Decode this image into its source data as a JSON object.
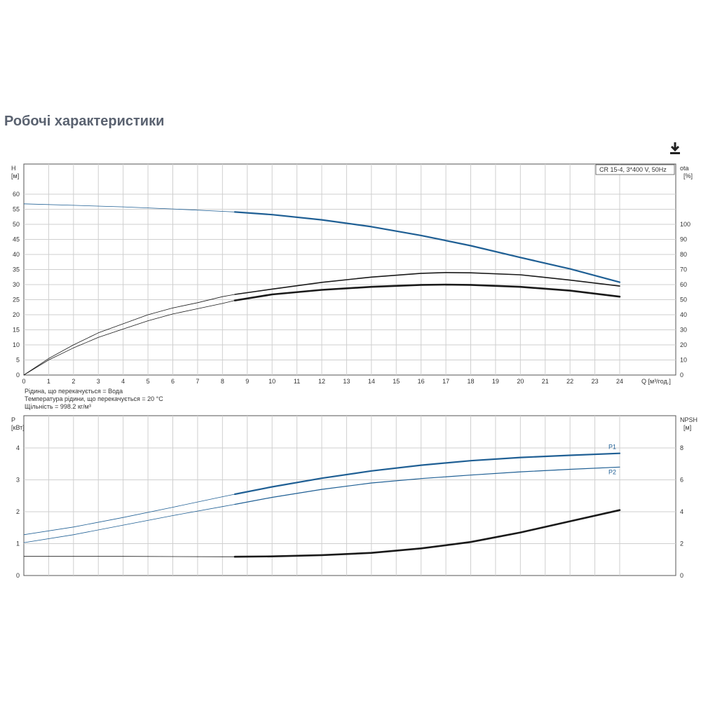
{
  "title": "Робочі характеристики",
  "download_icon": "download-icon",
  "legend_box": "CR 15-4, 3*400 V, 50Hz",
  "fluid_notes": [
    "Рідина, що перекачується = Вода",
    "Температура рідини, що перекачується = 20 °C",
    "Щільність = 998.2 кг/м³"
  ],
  "colors": {
    "blue": "#1f5f94",
    "dark": "#1a1a1a",
    "grid": "#cfcfcf",
    "axis": "#555555"
  },
  "chart_data": [
    {
      "type": "line",
      "name": "top",
      "x_label": "Q [м³/год.]",
      "y_left_label": [
        "H",
        "[м]"
      ],
      "y_right_label": [
        "ota",
        "[%]"
      ],
      "xlim": [
        0,
        26
      ],
      "ylim": [
        0,
        70
      ],
      "ylim_right": [
        0,
        140
      ],
      "x_ticks": [
        0,
        1,
        2,
        3,
        4,
        5,
        6,
        7,
        8,
        9,
        10,
        11,
        12,
        13,
        14,
        15,
        16,
        17,
        18,
        19,
        20,
        21,
        22,
        23,
        24
      ],
      "y_ticks": [
        0,
        5,
        10,
        15,
        20,
        25,
        30,
        35,
        40,
        45,
        50,
        55,
        60
      ],
      "y_right_ticks": [
        0,
        10,
        20,
        30,
        40,
        50,
        60,
        70,
        80,
        90,
        100
      ],
      "series": [
        {
          "axis": "left",
          "color": "#1f5f94",
          "width_thin": 0.8,
          "width_thick": 2.2,
          "split": 8.5,
          "x": [
            0,
            2,
            4,
            6,
            8,
            8.5,
            10,
            12,
            14,
            16,
            18,
            20,
            22,
            24
          ],
          "y": [
            56.8,
            56.3,
            55.8,
            55.1,
            54.3,
            54.1,
            53.2,
            51.5,
            49.2,
            46.3,
            42.9,
            39.0,
            35.2,
            30.8
          ]
        },
        {
          "axis": "right",
          "color": "#1a1a1a",
          "width_thin": 0.8,
          "width_thick": 1.6,
          "split": 8.5,
          "x": [
            0,
            1,
            2,
            3,
            4,
            5,
            6,
            7,
            8,
            8.5,
            10,
            12,
            14,
            16,
            17,
            18,
            20,
            22,
            24
          ],
          "y": [
            0,
            11,
            20,
            28,
            34,
            40,
            44.5,
            48,
            52,
            53.5,
            57,
            61.5,
            65,
            67.5,
            68,
            67.8,
            66.5,
            63,
            59
          ]
        },
        {
          "axis": "right",
          "color": "#1a1a1a",
          "width_thin": 0.8,
          "width_thick": 2.6,
          "split": 8.5,
          "x": [
            0,
            1,
            2,
            3,
            4,
            5,
            6,
            7,
            8,
            8.5,
            10,
            12,
            14,
            16,
            17,
            18,
            20,
            22,
            24
          ],
          "y": [
            0,
            10,
            18,
            25,
            30.5,
            36,
            40.5,
            44,
            47.5,
            49.5,
            53.5,
            56.5,
            58.5,
            59.8,
            60,
            59.8,
            58.5,
            56,
            52
          ]
        }
      ]
    },
    {
      "type": "line",
      "name": "bottom",
      "y_left_label": [
        "P",
        "[кВт]"
      ],
      "y_right_label": [
        "NPSH",
        "[м]"
      ],
      "xlim": [
        0,
        26
      ],
      "ylim": [
        0,
        5
      ],
      "ylim_right": [
        0,
        10
      ],
      "x_ticks": [
        0,
        1,
        2,
        3,
        4,
        5,
        6,
        7,
        8,
        9,
        10,
        11,
        12,
        13,
        14,
        15,
        16,
        17,
        18,
        19,
        20,
        21,
        22,
        23,
        24
      ],
      "y_ticks": [
        0,
        1,
        2,
        3,
        4
      ],
      "y_right_ticks": [
        0,
        2,
        4,
        6,
        8
      ],
      "series": [
        {
          "name": "P1",
          "axis": "left",
          "color": "#1f5f94",
          "width_thin": 0.8,
          "width_thick": 2.2,
          "split": 8.5,
          "x": [
            0,
            2,
            4,
            6,
            8,
            8.5,
            10,
            12,
            14,
            16,
            18,
            20,
            22,
            24
          ],
          "y": [
            1.28,
            1.52,
            1.82,
            2.14,
            2.47,
            2.55,
            2.78,
            3.05,
            3.28,
            3.46,
            3.6,
            3.7,
            3.77,
            3.83
          ]
        },
        {
          "name": "P2",
          "axis": "left",
          "color": "#1f5f94",
          "width_thin": 0.8,
          "width_thick": 1.2,
          "split": 8.5,
          "x": [
            0,
            2,
            4,
            6,
            8,
            8.5,
            10,
            12,
            14,
            16,
            18,
            20,
            22,
            24
          ],
          "y": [
            1.03,
            1.28,
            1.58,
            1.88,
            2.16,
            2.23,
            2.45,
            2.7,
            2.9,
            3.04,
            3.15,
            3.25,
            3.33,
            3.4
          ]
        },
        {
          "name": "NPSH",
          "axis": "right",
          "color": "#1a1a1a",
          "width_thin": 0.8,
          "width_thick": 2.6,
          "split": 8.5,
          "x": [
            0,
            4,
            8,
            8.5,
            10,
            12,
            14,
            16,
            18,
            20,
            22,
            24
          ],
          "y": [
            1.2,
            1.2,
            1.18,
            1.18,
            1.2,
            1.28,
            1.42,
            1.7,
            2.1,
            2.7,
            3.4,
            4.1
          ]
        }
      ]
    }
  ]
}
